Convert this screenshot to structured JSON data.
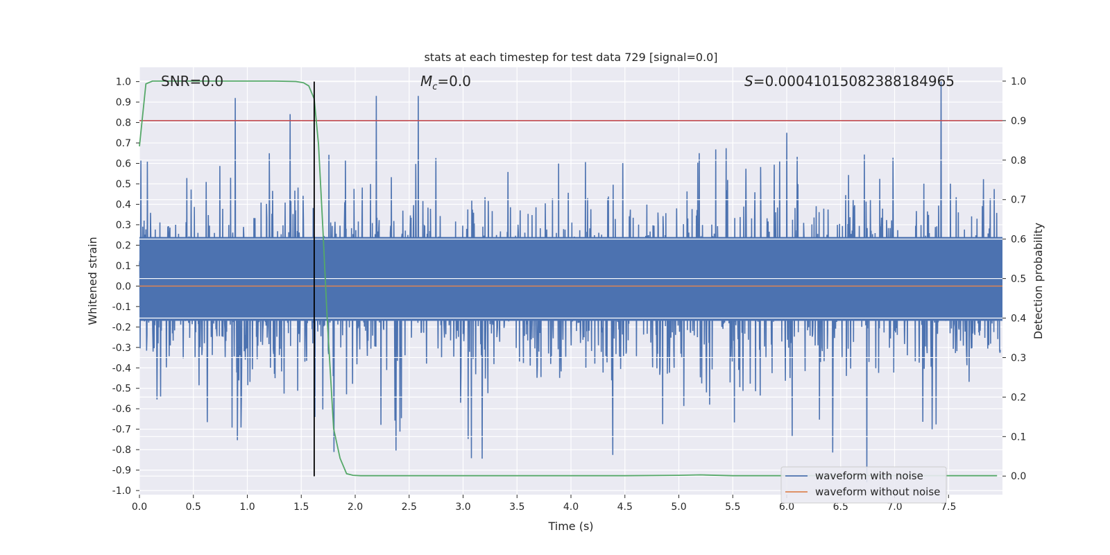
{
  "chart_data": {
    "type": "line",
    "title": "stats at each timestep for test data 729 [signal=0.0]",
    "xlabel": "Time (s)",
    "ylabel": "Whitened strain",
    "y2label": "Detection probability",
    "xlim": [
      0.0,
      8.0
    ],
    "ylim": [
      -1.02,
      1.07
    ],
    "y2lim": [
      -0.047,
      1.035
    ],
    "x_ticks": [
      "0.0",
      "0.5",
      "1.0",
      "1.5",
      "2.0",
      "2.5",
      "3.0",
      "3.5",
      "4.0",
      "4.5",
      "5.0",
      "5.5",
      "6.0",
      "6.5",
      "7.0",
      "7.5"
    ],
    "y_ticks": [
      "1.0",
      "0.9",
      "0.8",
      "0.7",
      "0.6",
      "0.5",
      "0.4",
      "0.3",
      "0.2",
      "0.1",
      "0.0",
      "-0.1",
      "-0.2",
      "-0.3",
      "-0.4",
      "-0.5",
      "-0.6",
      "-0.7",
      "-0.8",
      "-0.9",
      "-1.0"
    ],
    "y2_ticks": [
      "1.0",
      "0.9",
      "0.8",
      "0.7",
      "0.6",
      "0.5",
      "0.4",
      "0.3",
      "0.2",
      "0.1",
      "0.0"
    ],
    "annotations": {
      "snr": "SNR=0.0",
      "mc_symbol": "M",
      "mc_sub": "c",
      "mc_value": "=0.0",
      "s_symbol": "S",
      "s_value": "=0.00041015082388184965"
    },
    "threshold_probability": 0.9,
    "marker_time": 1.62,
    "legend": [
      "waveform with noise",
      "waveform without noise"
    ],
    "legend_position": "lower right",
    "colors": {
      "noise": "#4c72b0",
      "clean": "#dd8452",
      "probability": "#55a868",
      "threshold": "#c44e52",
      "marker": "#000000",
      "plot_bg": "#eaeaf2",
      "grid": "#ffffff"
    },
    "series": [
      {
        "name": "waveform with noise",
        "axis": "left",
        "style": "dense noise, amplitude ~0.2 sigma, occasional spikes to ~1.0"
      },
      {
        "name": "waveform without noise",
        "axis": "left",
        "x": [
          0.0,
          8.0
        ],
        "values": [
          0.0,
          0.0
        ]
      },
      {
        "name": "detection probability",
        "axis": "right",
        "x": [
          0.0,
          0.06,
          0.12,
          0.25,
          0.5,
          0.75,
          1.0,
          1.25,
          1.45,
          1.52,
          1.57,
          1.62,
          1.66,
          1.7,
          1.74,
          1.8,
          1.86,
          1.92,
          1.98,
          2.05,
          2.2,
          2.5,
          3.0,
          3.5,
          4.0,
          4.5,
          5.0,
          5.2,
          5.5,
          6.0,
          6.5,
          7.0,
          7.5,
          7.95
        ],
        "values": [
          0.835,
          0.993,
          1.0,
          1.0,
          1.0,
          1.0,
          1.0,
          1.0,
          0.999,
          0.996,
          0.988,
          0.955,
          0.84,
          0.63,
          0.4,
          0.12,
          0.045,
          0.006,
          0.002,
          0.001,
          0.001,
          0.001,
          0.001,
          0.001,
          0.001,
          0.001,
          0.002,
          0.003,
          0.001,
          0.001,
          0.001,
          0.001,
          0.001,
          0.001
        ]
      }
    ]
  }
}
